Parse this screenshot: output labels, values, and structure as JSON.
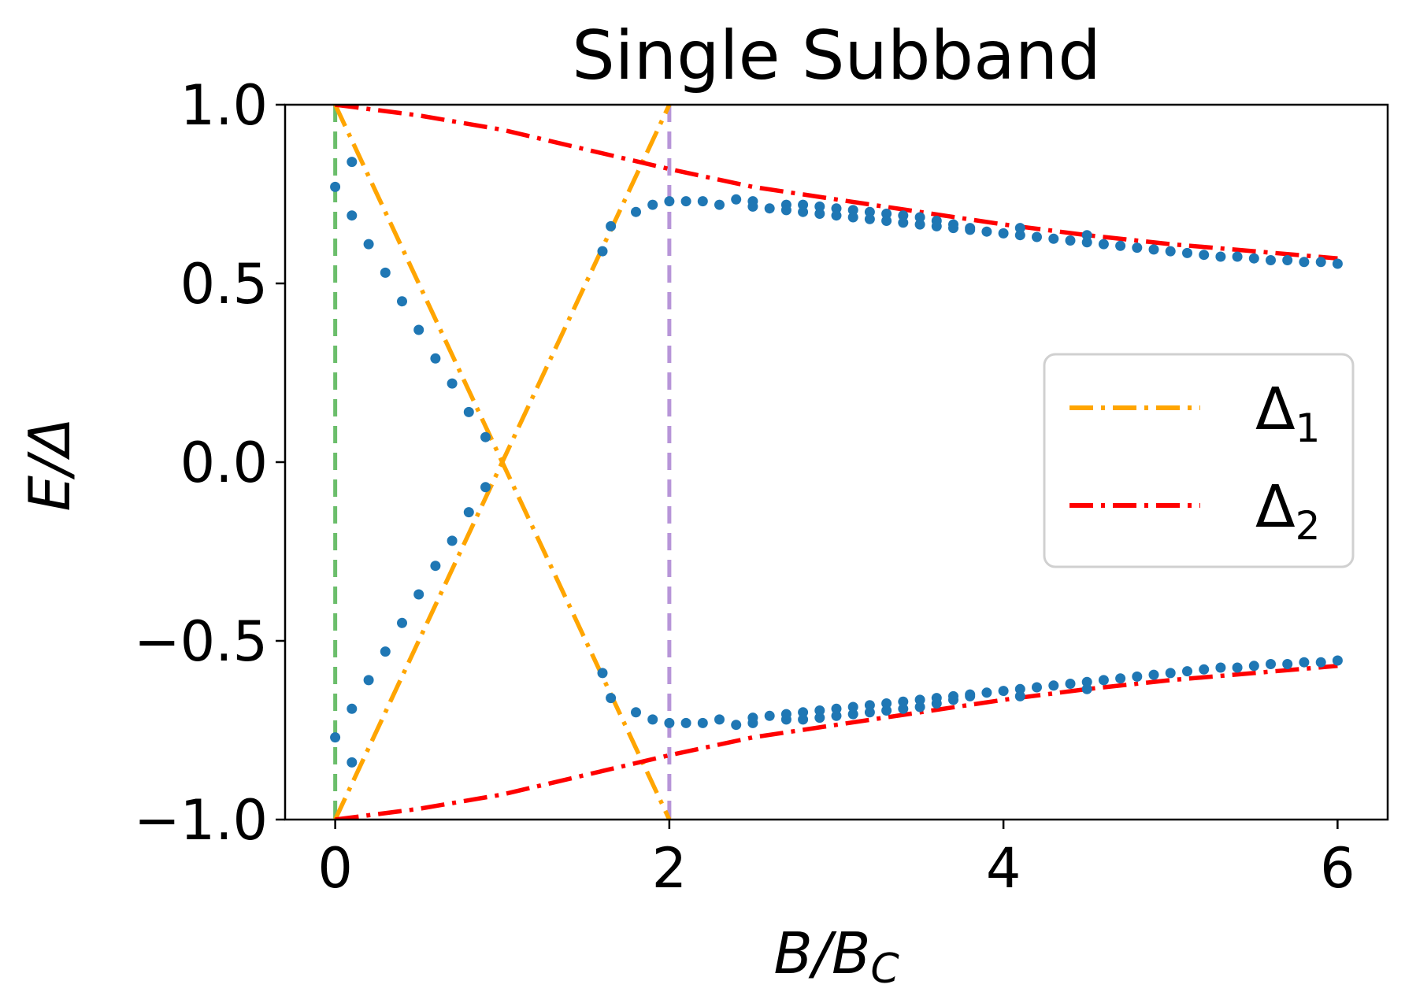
{
  "chart_data": {
    "type": "line",
    "title": "Single Subband",
    "xlabel": "B/B",
    "xlabel_sub": "C",
    "ylabel": "E/Δ",
    "xlim": [
      -0.3,
      6.3
    ],
    "ylim": [
      -1.0,
      1.0
    ],
    "xticks": [
      0,
      2,
      4,
      6
    ],
    "xtick_labels": [
      "0",
      "2",
      "4",
      "6"
    ],
    "yticks": [
      -1.0,
      -0.5,
      0.0,
      0.5,
      1.0
    ],
    "ytick_labels": [
      "−1.0",
      "−0.5",
      "0.0",
      "0.5",
      "1.0"
    ],
    "grid": false,
    "legend_position": "center-right",
    "vertical_lines": [
      {
        "x": 0,
        "color": "#5cb85c",
        "style": "dashed"
      },
      {
        "x": 2,
        "color": "#b08ad4",
        "style": "dashed"
      }
    ],
    "series": [
      {
        "name": "Δ",
        "name_sub": "1",
        "style": "dashdot",
        "color": "#ffa500",
        "segments": [
          {
            "x": [
              0,
              2
            ],
            "y": [
              1.0,
              -1.0
            ]
          },
          {
            "x": [
              0,
              2
            ],
            "y": [
              -1.0,
              1.0
            ]
          }
        ]
      },
      {
        "name": "Δ",
        "name_sub": "2",
        "style": "dashdot",
        "color": "#ff0000",
        "segments": [
          {
            "x": [
              0,
              0.5,
              1,
              1.5,
              2,
              2.5,
              3,
              3.5,
              4,
              4.5,
              5,
              5.5,
              6
            ],
            "y": [
              1.0,
              0.97,
              0.93,
              0.875,
              0.82,
              0.77,
              0.735,
              0.7,
              0.665,
              0.635,
              0.61,
              0.59,
              0.57
            ]
          },
          {
            "x": [
              0,
              0.5,
              1,
              1.5,
              2,
              2.5,
              3,
              3.5,
              4,
              4.5,
              5,
              5.5,
              6
            ],
            "y": [
              -1.0,
              -0.97,
              -0.93,
              -0.875,
              -0.82,
              -0.77,
              -0.735,
              -0.7,
              -0.665,
              -0.635,
              -0.61,
              -0.59,
              -0.57
            ]
          }
        ]
      },
      {
        "style": "scatter",
        "color": "#1f77b4",
        "points_upper": [
          [
            0,
            0.77
          ],
          [
            0.1,
            0.84
          ],
          [
            0.1,
            0.69
          ],
          [
            0.2,
            0.61
          ],
          [
            0.3,
            0.53
          ],
          [
            0.4,
            0.45
          ],
          [
            0.5,
            0.37
          ],
          [
            0.6,
            0.29
          ],
          [
            0.7,
            0.22
          ],
          [
            0.8,
            0.14
          ],
          [
            0.9,
            0.07
          ],
          [
            0.9,
            -0.07
          ],
          [
            1.6,
            0.59
          ],
          [
            1.65,
            0.66
          ],
          [
            1.8,
            0.7
          ],
          [
            1.9,
            0.72
          ],
          [
            2.0,
            0.73
          ],
          [
            2.1,
            0.73
          ],
          [
            2.2,
            0.73
          ],
          [
            2.3,
            0.72
          ],
          [
            2.4,
            0.735
          ],
          [
            2.5,
            0.73
          ],
          [
            2.5,
            0.715
          ],
          [
            2.6,
            0.71
          ],
          [
            2.7,
            0.72
          ],
          [
            2.7,
            0.705
          ],
          [
            2.8,
            0.72
          ],
          [
            2.8,
            0.7
          ],
          [
            2.9,
            0.715
          ],
          [
            2.9,
            0.695
          ],
          [
            3.0,
            0.71
          ],
          [
            3.0,
            0.69
          ],
          [
            3.1,
            0.705
          ],
          [
            3.1,
            0.685
          ],
          [
            3.2,
            0.7
          ],
          [
            3.2,
            0.68
          ],
          [
            3.3,
            0.695
          ],
          [
            3.3,
            0.675
          ],
          [
            3.4,
            0.69
          ],
          [
            3.4,
            0.67
          ],
          [
            3.5,
            0.685
          ],
          [
            3.5,
            0.665
          ],
          [
            3.6,
            0.675
          ],
          [
            3.6,
            0.66
          ],
          [
            3.7,
            0.665
          ],
          [
            3.7,
            0.655
          ],
          [
            3.8,
            0.655
          ],
          [
            3.8,
            0.65
          ],
          [
            3.9,
            0.645
          ],
          [
            4.0,
            0.64
          ],
          [
            4.1,
            0.635
          ],
          [
            4.1,
            0.655
          ],
          [
            4.2,
            0.63
          ],
          [
            4.3,
            0.625
          ],
          [
            4.4,
            0.62
          ],
          [
            4.5,
            0.615
          ],
          [
            4.5,
            0.635
          ],
          [
            4.6,
            0.61
          ],
          [
            4.7,
            0.605
          ],
          [
            4.8,
            0.6
          ],
          [
            4.9,
            0.595
          ],
          [
            5.0,
            0.59
          ],
          [
            5.1,
            0.585
          ],
          [
            5.2,
            0.58
          ],
          [
            5.3,
            0.575
          ],
          [
            5.4,
            0.575
          ],
          [
            5.5,
            0.57
          ],
          [
            5.6,
            0.565
          ],
          [
            5.7,
            0.565
          ],
          [
            5.8,
            0.56
          ],
          [
            5.9,
            0.56
          ],
          [
            6.0,
            0.555
          ]
        ],
        "points_lower": [
          [
            0,
            -0.77
          ],
          [
            0.1,
            -0.84
          ],
          [
            0.1,
            -0.69
          ],
          [
            0.2,
            -0.61
          ],
          [
            0.3,
            -0.53
          ],
          [
            0.4,
            -0.45
          ],
          [
            0.5,
            -0.37
          ],
          [
            0.6,
            -0.29
          ],
          [
            0.7,
            -0.22
          ],
          [
            0.8,
            -0.14
          ],
          [
            1.6,
            -0.59
          ],
          [
            1.65,
            -0.66
          ],
          [
            1.8,
            -0.7
          ],
          [
            1.9,
            -0.72
          ],
          [
            2.0,
            -0.73
          ],
          [
            2.1,
            -0.73
          ],
          [
            2.2,
            -0.73
          ],
          [
            2.3,
            -0.72
          ],
          [
            2.4,
            -0.735
          ],
          [
            2.5,
            -0.73
          ],
          [
            2.5,
            -0.715
          ],
          [
            2.6,
            -0.71
          ],
          [
            2.7,
            -0.72
          ],
          [
            2.7,
            -0.705
          ],
          [
            2.8,
            -0.72
          ],
          [
            2.8,
            -0.7
          ],
          [
            2.9,
            -0.715
          ],
          [
            2.9,
            -0.695
          ],
          [
            3.0,
            -0.71
          ],
          [
            3.0,
            -0.69
          ],
          [
            3.1,
            -0.705
          ],
          [
            3.1,
            -0.685
          ],
          [
            3.2,
            -0.7
          ],
          [
            3.2,
            -0.68
          ],
          [
            3.3,
            -0.695
          ],
          [
            3.3,
            -0.675
          ],
          [
            3.4,
            -0.69
          ],
          [
            3.4,
            -0.67
          ],
          [
            3.5,
            -0.685
          ],
          [
            3.5,
            -0.665
          ],
          [
            3.6,
            -0.675
          ],
          [
            3.6,
            -0.66
          ],
          [
            3.7,
            -0.665
          ],
          [
            3.7,
            -0.655
          ],
          [
            3.8,
            -0.655
          ],
          [
            3.8,
            -0.65
          ],
          [
            3.9,
            -0.645
          ],
          [
            4.0,
            -0.64
          ],
          [
            4.1,
            -0.635
          ],
          [
            4.1,
            -0.655
          ],
          [
            4.2,
            -0.63
          ],
          [
            4.3,
            -0.625
          ],
          [
            4.4,
            -0.62
          ],
          [
            4.5,
            -0.615
          ],
          [
            4.5,
            -0.635
          ],
          [
            4.6,
            -0.61
          ],
          [
            4.7,
            -0.605
          ],
          [
            4.8,
            -0.6
          ],
          [
            4.9,
            -0.595
          ],
          [
            5.0,
            -0.59
          ],
          [
            5.1,
            -0.585
          ],
          [
            5.2,
            -0.58
          ],
          [
            5.3,
            -0.575
          ],
          [
            5.4,
            -0.575
          ],
          [
            5.5,
            -0.57
          ],
          [
            5.6,
            -0.565
          ],
          [
            5.7,
            -0.565
          ],
          [
            5.8,
            -0.56
          ],
          [
            5.9,
            -0.56
          ],
          [
            6.0,
            -0.555
          ]
        ]
      }
    ]
  }
}
